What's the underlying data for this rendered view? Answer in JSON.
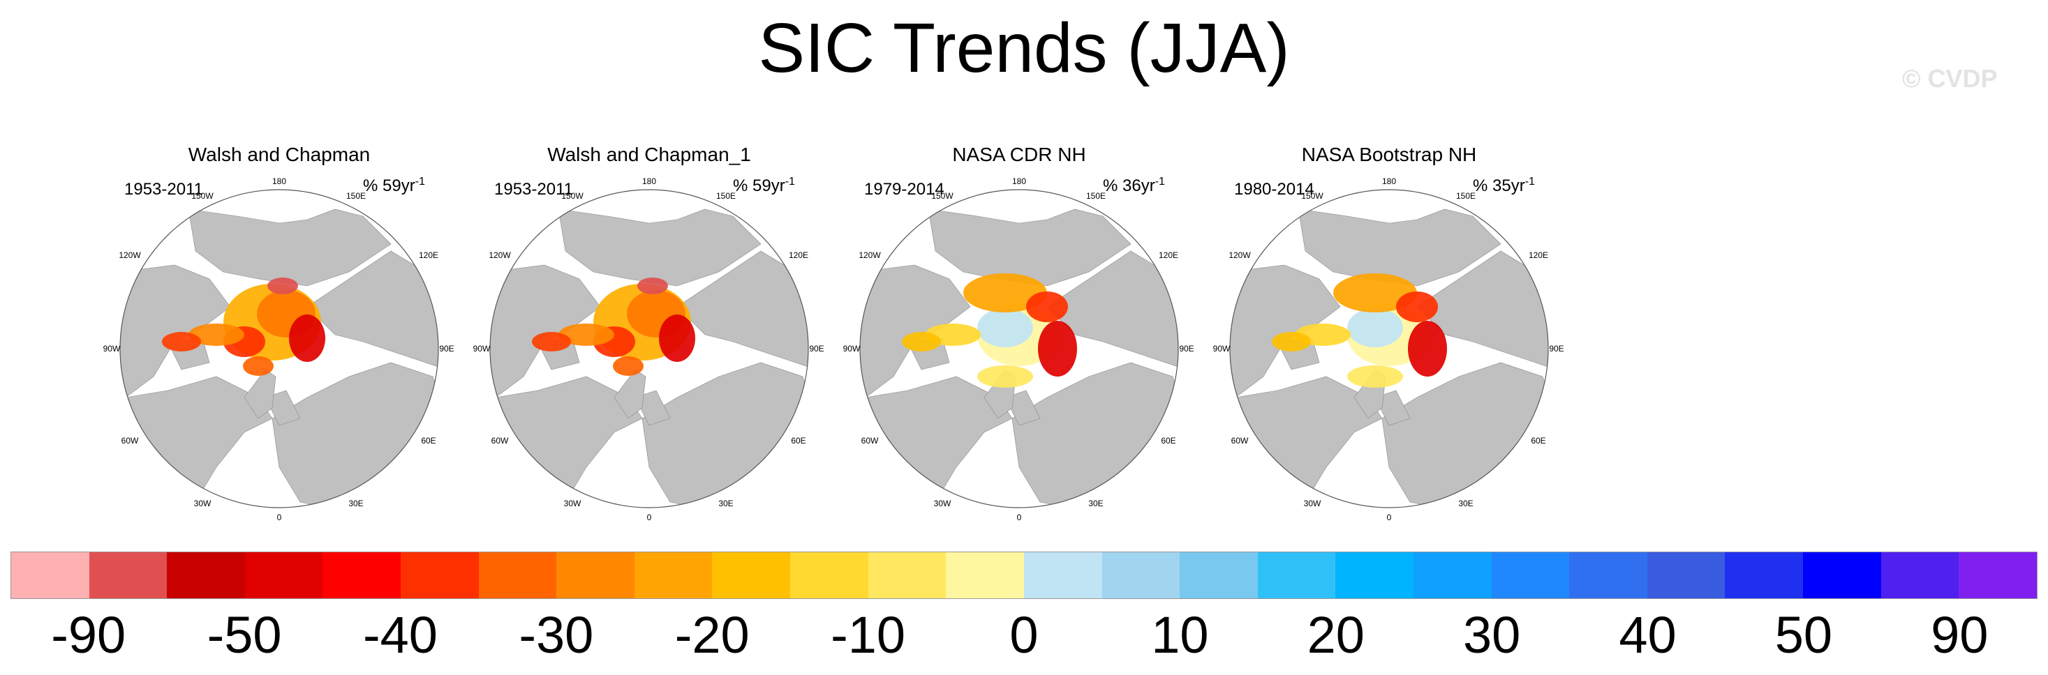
{
  "title": "SIC Trends (JJA)",
  "watermark": "© CVDP",
  "panels": [
    {
      "title": "Walsh and Chapman",
      "years": "1953-2011",
      "units_prefix": "% 59yr",
      "units_sup": "-1"
    },
    {
      "title": "Walsh and Chapman_1",
      "years": "1953-2011",
      "units_prefix": "% 59yr",
      "units_sup": "-1"
    },
    {
      "title": "NASA CDR NH",
      "years": "1979-2014",
      "units_prefix": "% 36yr",
      "units_sup": "-1"
    },
    {
      "title": "NASA Bootstrap NH",
      "years": "1980-2014",
      "units_prefix": "% 35yr",
      "units_sup": "-1"
    }
  ],
  "longitude_labels": {
    "top": "180",
    "bottom": "0",
    "left": [
      "150W",
      "120W",
      "90W",
      "60W",
      "30W"
    ],
    "right": [
      "150E",
      "120E",
      "90E",
      "60E",
      "30E"
    ]
  },
  "colorbar": {
    "colors": [
      "#ffb0b0",
      "#e05050",
      "#c80000",
      "#e00000",
      "#ff0000",
      "#ff3000",
      "#ff6400",
      "#ff8800",
      "#ffa400",
      "#ffc000",
      "#ffd830",
      "#ffe860",
      "#fff6a0",
      "#c0e4f4",
      "#a0d4ef",
      "#78c8f0",
      "#30c0f8",
      "#00b4ff",
      "#10a0ff",
      "#2088ff",
      "#3070f0",
      "#3a5ce0",
      "#2030f0",
      "#0000ff",
      "#5020f0",
      "#8020f0"
    ],
    "labels": [
      "-90",
      "-50",
      "-40",
      "-30",
      "-20",
      "-10",
      "0",
      "10",
      "20",
      "30",
      "40",
      "50",
      "90"
    ]
  }
}
